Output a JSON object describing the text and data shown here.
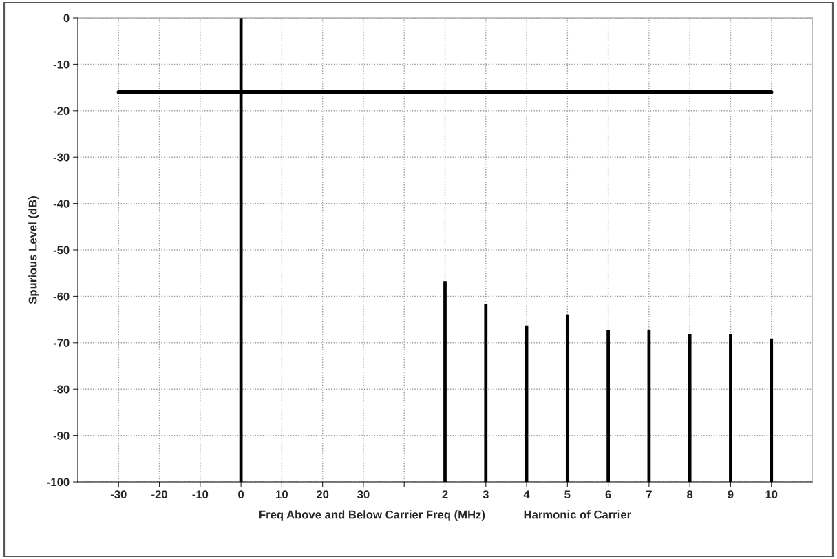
{
  "chart_data": {
    "type": "bar",
    "xlabel": "Freq Above and Below Carrier Freq (MHz)            Harmonic of Carrier",
    "ylabel": "Spurious Level (dB)",
    "categories": [
      "-30",
      "-20",
      "-10",
      "0",
      "10",
      "20",
      "30",
      null,
      "2",
      "3",
      "4",
      "5",
      "6",
      "7",
      "8",
      "9",
      "10"
    ],
    "series": [
      {
        "color": "#000000",
        "values": [
          null,
          null,
          null,
          100,
          null,
          null,
          null,
          null,
          43.3,
          38.3,
          33.7,
          36.1,
          32.8,
          32.8,
          31.9,
          31.9,
          30.9
        ],
        "base": [
          null,
          null,
          null,
          -100,
          null,
          null,
          null,
          null,
          -100,
          -100,
          -100,
          -100,
          -100,
          -100,
          -100,
          -100,
          -100
        ]
      },
      {
        "type": "line",
        "color": "#000000",
        "values": [
          -16,
          -16,
          -16,
          -16,
          -16,
          -16,
          -16,
          -16,
          -16,
          -16,
          -16,
          -16,
          -16,
          -16,
          -16,
          -16,
          -16
        ]
      }
    ],
    "ylim": [
      -100,
      0
    ],
    "yticks": [
      -100,
      -90,
      -80,
      -70,
      -60,
      -50,
      -40,
      -30,
      -20,
      -10,
      0
    ],
    "grid": true,
    "line_style": "solid",
    "marker": "none"
  }
}
